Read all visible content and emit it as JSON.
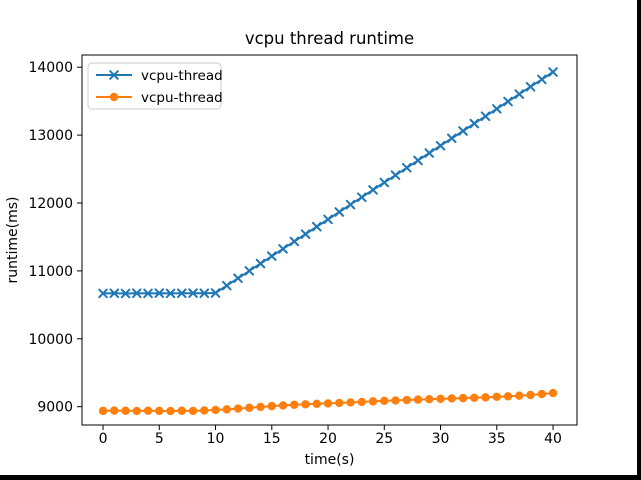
{
  "window": {
    "screen_fill_color": "#000000",
    "figure_background": "#ffffff"
  },
  "chart_data": {
    "type": "line",
    "title": "vcpu thread runtime",
    "xlabel": "time(s)",
    "ylabel": "runtime(ms)",
    "grid": false,
    "legend_position": "upper-left",
    "xlim": [
      -1.87,
      42.13
    ],
    "ylim": [
      8730,
      14180
    ],
    "xticks": [
      0,
      5,
      10,
      15,
      20,
      25,
      30,
      35,
      40
    ],
    "yticks": [
      9000,
      10000,
      11000,
      12000,
      13000,
      14000
    ],
    "x": [
      0,
      1,
      2,
      3,
      4,
      5,
      6,
      7,
      8,
      9,
      10,
      11,
      12,
      13,
      14,
      15,
      16,
      17,
      18,
      19,
      20,
      21,
      22,
      23,
      24,
      25,
      26,
      27,
      28,
      29,
      30,
      31,
      32,
      33,
      34,
      35,
      36,
      37,
      38,
      39,
      40
    ],
    "series": [
      {
        "name": "vcpu-thread",
        "color": "#1f77b4",
        "marker": "x",
        "values": [
          10668,
          10670,
          10667,
          10671,
          10669,
          10672,
          10668,
          10670,
          10672,
          10671,
          10674,
          10783,
          10891,
          11000,
          11108,
          11217,
          11325,
          11434,
          11542,
          11651,
          11759,
          11868,
          11976,
          12085,
          12193,
          12302,
          12410,
          12519,
          12627,
          12736,
          12844,
          12953,
          13061,
          13170,
          13278,
          13387,
          13495,
          13604,
          13712,
          13821,
          13929
        ]
      },
      {
        "name": "vcpu-thread",
        "color": "#ff7f0e",
        "marker": "o",
        "values": [
          8938,
          8942,
          8940,
          8936,
          8941,
          8938,
          8935,
          8940,
          8937,
          8944,
          8952,
          8960,
          8972,
          8984,
          8996,
          9008,
          9018,
          9028,
          9035,
          9042,
          9048,
          9055,
          9062,
          9070,
          9078,
          9086,
          9092,
          9098,
          9104,
          9110,
          9116,
          9121,
          9126,
          9131,
          9137,
          9145,
          9153,
          9162,
          9172,
          9186,
          9200
        ]
      }
    ]
  }
}
